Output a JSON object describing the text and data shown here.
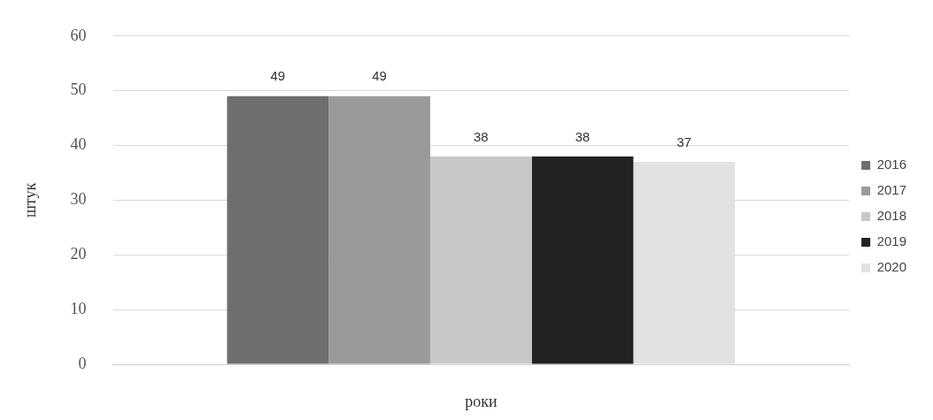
{
  "chart_data": {
    "type": "bar",
    "xlabel": "роки",
    "ylabel": "штук",
    "categories": [
      null
    ],
    "series": [
      {
        "name": "2016",
        "color": "#6e6e6e",
        "values": [
          49
        ]
      },
      {
        "name": "2017",
        "color": "#9a9a9a",
        "values": [
          49
        ]
      },
      {
        "name": "2018",
        "color": "#c8c8c8",
        "values": [
          38
        ]
      },
      {
        "name": "2019",
        "color": "#222222",
        "values": [
          38
        ]
      },
      {
        "name": "2020",
        "color": "#e2e2e2",
        "values": [
          37
        ]
      }
    ],
    "ylim": [
      0,
      60
    ],
    "yticks": [
      0,
      10,
      20,
      30,
      40,
      50,
      60
    ],
    "grid": "y",
    "legend": "right",
    "data_labels": true
  }
}
